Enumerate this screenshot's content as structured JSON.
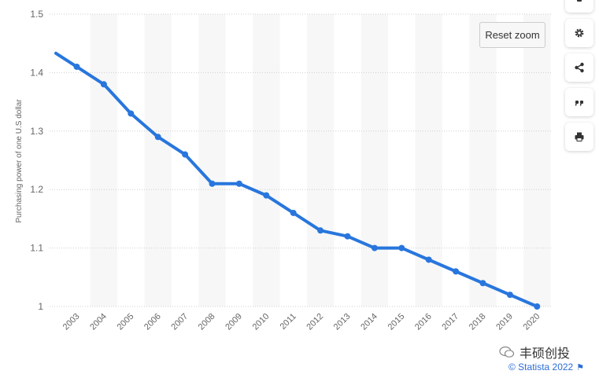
{
  "chart_data": {
    "type": "line",
    "ylabel": "Purchasing power of one U.S dollar",
    "categories": [
      "2003",
      "2004",
      "2005",
      "2006",
      "2007",
      "2008",
      "2009",
      "2010",
      "2011",
      "2012",
      "2013",
      "2014",
      "2015",
      "2016",
      "2017",
      "2018",
      "2019",
      "2020"
    ],
    "series": [
      {
        "values": [
          1.41,
          1.38,
          1.33,
          1.29,
          1.26,
          1.21,
          1.21,
          1.19,
          1.16,
          1.13,
          1.12,
          1.1,
          1.1,
          1.08,
          1.06,
          1.04,
          1.02,
          1.0
        ]
      }
    ],
    "ylim": [
      1,
      1.5
    ],
    "yticks": [
      "1",
      "1.1",
      "1.2",
      "1.3",
      "1.4",
      "1.5"
    ],
    "grid": true,
    "line_color": "#2876dd"
  },
  "ui": {
    "reset_zoom_label": "Reset zoom",
    "credit": "© Statista 2022",
    "watermark": "丰硕创投",
    "tools": [
      {
        "name": "settings-button",
        "icon": "gear-icon"
      },
      {
        "name": "share-button",
        "icon": "share-icon"
      },
      {
        "name": "cite-button",
        "icon": "quote-icon"
      },
      {
        "name": "print-button",
        "icon": "print-icon"
      }
    ]
  }
}
